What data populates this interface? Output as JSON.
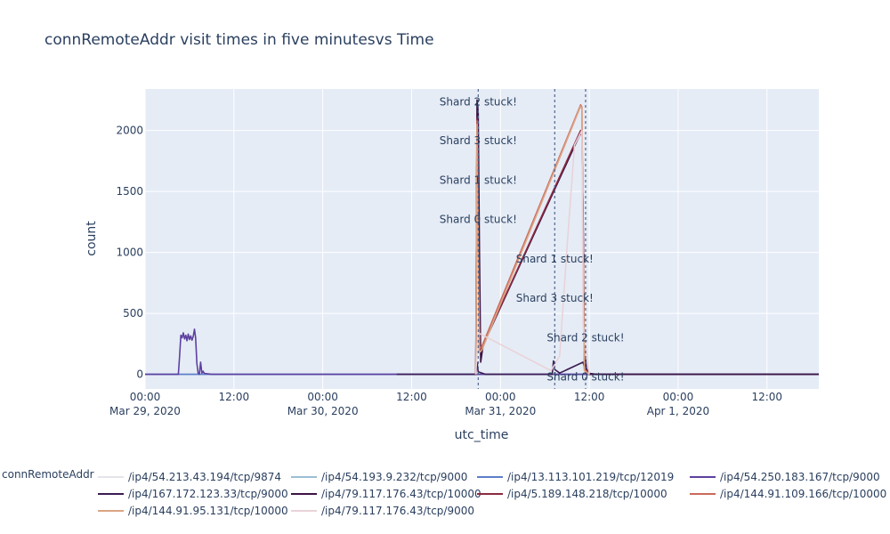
{
  "chart_data": {
    "type": "line",
    "title": "connRemoteAddr visit times in five minutesvs Time",
    "xlabel": "utc_time",
    "ylabel": "count",
    "x_range": [
      "2020-03-29 00:00",
      "2020-04-01 19:00"
    ],
    "ylim": [
      -120,
      2340
    ],
    "y_ticks": [
      0,
      500,
      1000,
      1500,
      2000
    ],
    "x_ticks": [
      {
        "t": "2020-03-29 00:00",
        "line1": "00:00",
        "line2": "Mar 29, 2020"
      },
      {
        "t": "2020-03-29 12:00",
        "line1": "12:00",
        "line2": ""
      },
      {
        "t": "2020-03-30 00:00",
        "line1": "00:00",
        "line2": "Mar 30, 2020"
      },
      {
        "t": "2020-03-30 12:00",
        "line1": "12:00",
        "line2": ""
      },
      {
        "t": "2020-03-31 00:00",
        "line1": "00:00",
        "line2": "Mar 31, 2020"
      },
      {
        "t": "2020-03-31 12:00",
        "line1": "12:00",
        "line2": ""
      },
      {
        "t": "2020-04-01 00:00",
        "line1": "00:00",
        "line2": "Apr 1, 2020"
      },
      {
        "t": "2020-04-01 12:00",
        "line1": "12:00",
        "line2": ""
      }
    ],
    "grid": true,
    "legend": {
      "title": "connRemoteAddr",
      "placement": "bottom"
    },
    "series": [
      {
        "name": "/ip4/54.213.43.194/tcp/9874",
        "color": "#e4e4ea",
        "points": [
          [
            "2020-03-29 00:00",
            0
          ],
          [
            "2020-03-30 09:00",
            0
          ],
          [
            "2020-03-30 22:00",
            0
          ],
          [
            "2020-03-31 02:00",
            0
          ],
          [
            "2020-04-01 19:00",
            0
          ]
        ]
      },
      {
        "name": "/ip4/54.193.9.232/tcp/9000",
        "color": "#9cbed4",
        "points": [
          [
            "2020-03-29 00:00",
            0
          ],
          [
            "2020-03-29 05:00",
            0
          ],
          [
            "2020-03-30 12:00",
            0
          ],
          [
            "2020-03-31 02:00",
            0
          ],
          [
            "2020-04-01 19:00",
            0
          ]
        ]
      },
      {
        "name": "/ip4/13.113.101.219/tcp/12019",
        "color": "#5d7ec9",
        "points": [
          [
            "2020-03-29 00:00",
            0
          ],
          [
            "2020-03-29 05:10",
            0
          ],
          [
            "2020-03-29 12:00",
            0
          ],
          [
            "2020-03-30 00:00",
            0
          ],
          [
            "2020-04-01 19:00",
            0
          ]
        ]
      },
      {
        "name": "/ip4/54.250.183.167/tcp/9000",
        "color": "#5e40a0",
        "points": [
          [
            "2020-03-29 00:00",
            0
          ],
          [
            "2020-03-29 04:30",
            0
          ],
          [
            "2020-03-29 04:40",
            150
          ],
          [
            "2020-03-29 04:50",
            320
          ],
          [
            "2020-03-29 05:00",
            300
          ],
          [
            "2020-03-29 05:10",
            340
          ],
          [
            "2020-03-29 05:20",
            290
          ],
          [
            "2020-03-29 05:30",
            320
          ],
          [
            "2020-03-29 05:40",
            275
          ],
          [
            "2020-03-29 05:50",
            330
          ],
          [
            "2020-03-29 06:00",
            285
          ],
          [
            "2020-03-29 06:10",
            315
          ],
          [
            "2020-03-29 06:20",
            280
          ],
          [
            "2020-03-29 06:30",
            310
          ],
          [
            "2020-03-29 06:40",
            370
          ],
          [
            "2020-03-29 06:50",
            300
          ],
          [
            "2020-03-29 07:00",
            90
          ],
          [
            "2020-03-29 07:10",
            10
          ],
          [
            "2020-03-29 07:20",
            0
          ],
          [
            "2020-03-29 07:30",
            100
          ],
          [
            "2020-03-29 07:40",
            10
          ],
          [
            "2020-03-29 07:50",
            25
          ],
          [
            "2020-03-29 08:00",
            8
          ],
          [
            "2020-03-29 09:00",
            0
          ],
          [
            "2020-03-30 10:00",
            0
          ],
          [
            "2020-03-31 12:00",
            0
          ],
          [
            "2020-04-01 19:00",
            0
          ]
        ]
      },
      {
        "name": "/ip4/167.172.123.33/tcp/9000",
        "color": "#3b1c52",
        "points": [
          [
            "2020-03-30 10:00",
            0
          ],
          [
            "2020-03-30 20:40",
            0
          ],
          [
            "2020-03-30 20:50",
            100
          ],
          [
            "2020-03-30 21:00",
            20
          ],
          [
            "2020-03-30 22:00",
            0
          ],
          [
            "2020-03-31 07:00",
            0
          ],
          [
            "2020-03-31 07:10",
            110
          ],
          [
            "2020-03-31 07:20",
            40
          ],
          [
            "2020-03-31 08:00",
            10
          ],
          [
            "2020-03-31 11:10",
            100
          ],
          [
            "2020-03-31 11:20",
            60
          ],
          [
            "2020-03-31 11:30",
            120
          ],
          [
            "2020-03-31 11:40",
            10
          ],
          [
            "2020-03-31 13:00",
            0
          ],
          [
            "2020-04-01 19:00",
            0
          ]
        ]
      },
      {
        "name": "/ip4/79.117.176.43/tcp/10000",
        "color": "#3d1344",
        "points": [
          [
            "2020-03-30 20:40",
            0
          ],
          [
            "2020-03-30 20:50",
            2250
          ],
          [
            "2020-03-30 21:00",
            2150
          ],
          [
            "2020-03-30 21:10",
            1020
          ],
          [
            "2020-03-30 21:20",
            100
          ],
          [
            "2020-03-30 21:40",
            240
          ],
          [
            "2020-03-31 10:50",
            1980
          ],
          [
            "2020-03-31 11:00",
            1960
          ],
          [
            "2020-03-31 11:10",
            1250
          ],
          [
            "2020-03-31 11:20",
            80
          ],
          [
            "2020-03-31 12:00",
            0
          ],
          [
            "2020-04-01 19:00",
            0
          ]
        ]
      },
      {
        "name": "/ip4/5.189.148.218/tcp/10000",
        "color": "#8c2a40",
        "points": [
          [
            "2020-03-30 20:40",
            0
          ],
          [
            "2020-03-30 20:50",
            2100
          ],
          [
            "2020-03-30 21:00",
            1000
          ],
          [
            "2020-03-30 21:10",
            200
          ],
          [
            "2020-03-30 21:30",
            220
          ],
          [
            "2020-03-31 10:50",
            2000
          ],
          [
            "2020-03-31 11:00",
            1950
          ],
          [
            "2020-03-31 11:10",
            1260
          ],
          [
            "2020-03-31 11:20",
            50
          ],
          [
            "2020-03-31 12:00",
            0
          ]
        ]
      },
      {
        "name": "/ip4/144.91.109.166/tcp/10000",
        "color": "#c96a5b",
        "points": [
          [
            "2020-03-30 20:40",
            0
          ],
          [
            "2020-03-30 20:50",
            2080
          ],
          [
            "2020-03-30 21:00",
            1100
          ],
          [
            "2020-03-30 21:10",
            210
          ],
          [
            "2020-03-30 21:30",
            230
          ],
          [
            "2020-03-31 10:50",
            2210
          ],
          [
            "2020-03-31 11:00",
            2190
          ],
          [
            "2020-03-31 11:10",
            1100
          ],
          [
            "2020-03-31 11:20",
            40
          ],
          [
            "2020-03-31 12:00",
            0
          ]
        ]
      },
      {
        "name": "/ip4/144.91.95.131/tcp/10000",
        "color": "#dca483",
        "points": [
          [
            "2020-03-30 20:40",
            0
          ],
          [
            "2020-03-30 20:50",
            2050
          ],
          [
            "2020-03-30 21:00",
            900
          ],
          [
            "2020-03-30 21:10",
            180
          ],
          [
            "2020-03-30 21:30",
            200
          ],
          [
            "2020-03-31 10:50",
            2200
          ],
          [
            "2020-03-31 11:00",
            2180
          ],
          [
            "2020-03-31 11:10",
            1000
          ],
          [
            "2020-03-31 11:20",
            30
          ],
          [
            "2020-03-31 12:00",
            0
          ]
        ]
      },
      {
        "name": "/ip4/79.117.176.43/tcp/9000",
        "color": "#e9d3d9",
        "points": [
          [
            "2020-03-30 20:40",
            0
          ],
          [
            "2020-03-30 21:00",
            340
          ],
          [
            "2020-03-31 06:50",
            30
          ],
          [
            "2020-03-31 08:00",
            150
          ],
          [
            "2020-03-31 09:00",
            1050
          ],
          [
            "2020-03-31 10:00",
            1880
          ],
          [
            "2020-03-31 11:00",
            2000
          ],
          [
            "2020-03-31 11:10",
            400
          ],
          [
            "2020-03-31 12:00",
            0
          ]
        ]
      }
    ],
    "vlines": [
      "2020-03-30 21:00",
      "2020-03-31 07:20",
      "2020-03-31 11:30"
    ],
    "annotations": [
      {
        "text": "Shard 2 stuck!",
        "x": "2020-03-30 21:00",
        "y": 2235
      },
      {
        "text": "Shard 3 stuck!",
        "x": "2020-03-30 21:00",
        "y": 1915
      },
      {
        "text": "Shard 1 stuck!",
        "x": "2020-03-30 21:00",
        "y": 1590
      },
      {
        "text": "Shard 0 stuck!",
        "x": "2020-03-30 21:00",
        "y": 1270
      },
      {
        "text": "Shard 1 stuck!",
        "x": "2020-03-31 07:20",
        "y": 945
      },
      {
        "text": "Shard 3 stuck!",
        "x": "2020-03-31 07:20",
        "y": 625
      },
      {
        "text": "Shard 2 stuck!",
        "x": "2020-03-31 11:30",
        "y": 300
      },
      {
        "text": "Shard 0 stuck!",
        "x": "2020-03-31 11:30",
        "y": -20
      }
    ]
  }
}
